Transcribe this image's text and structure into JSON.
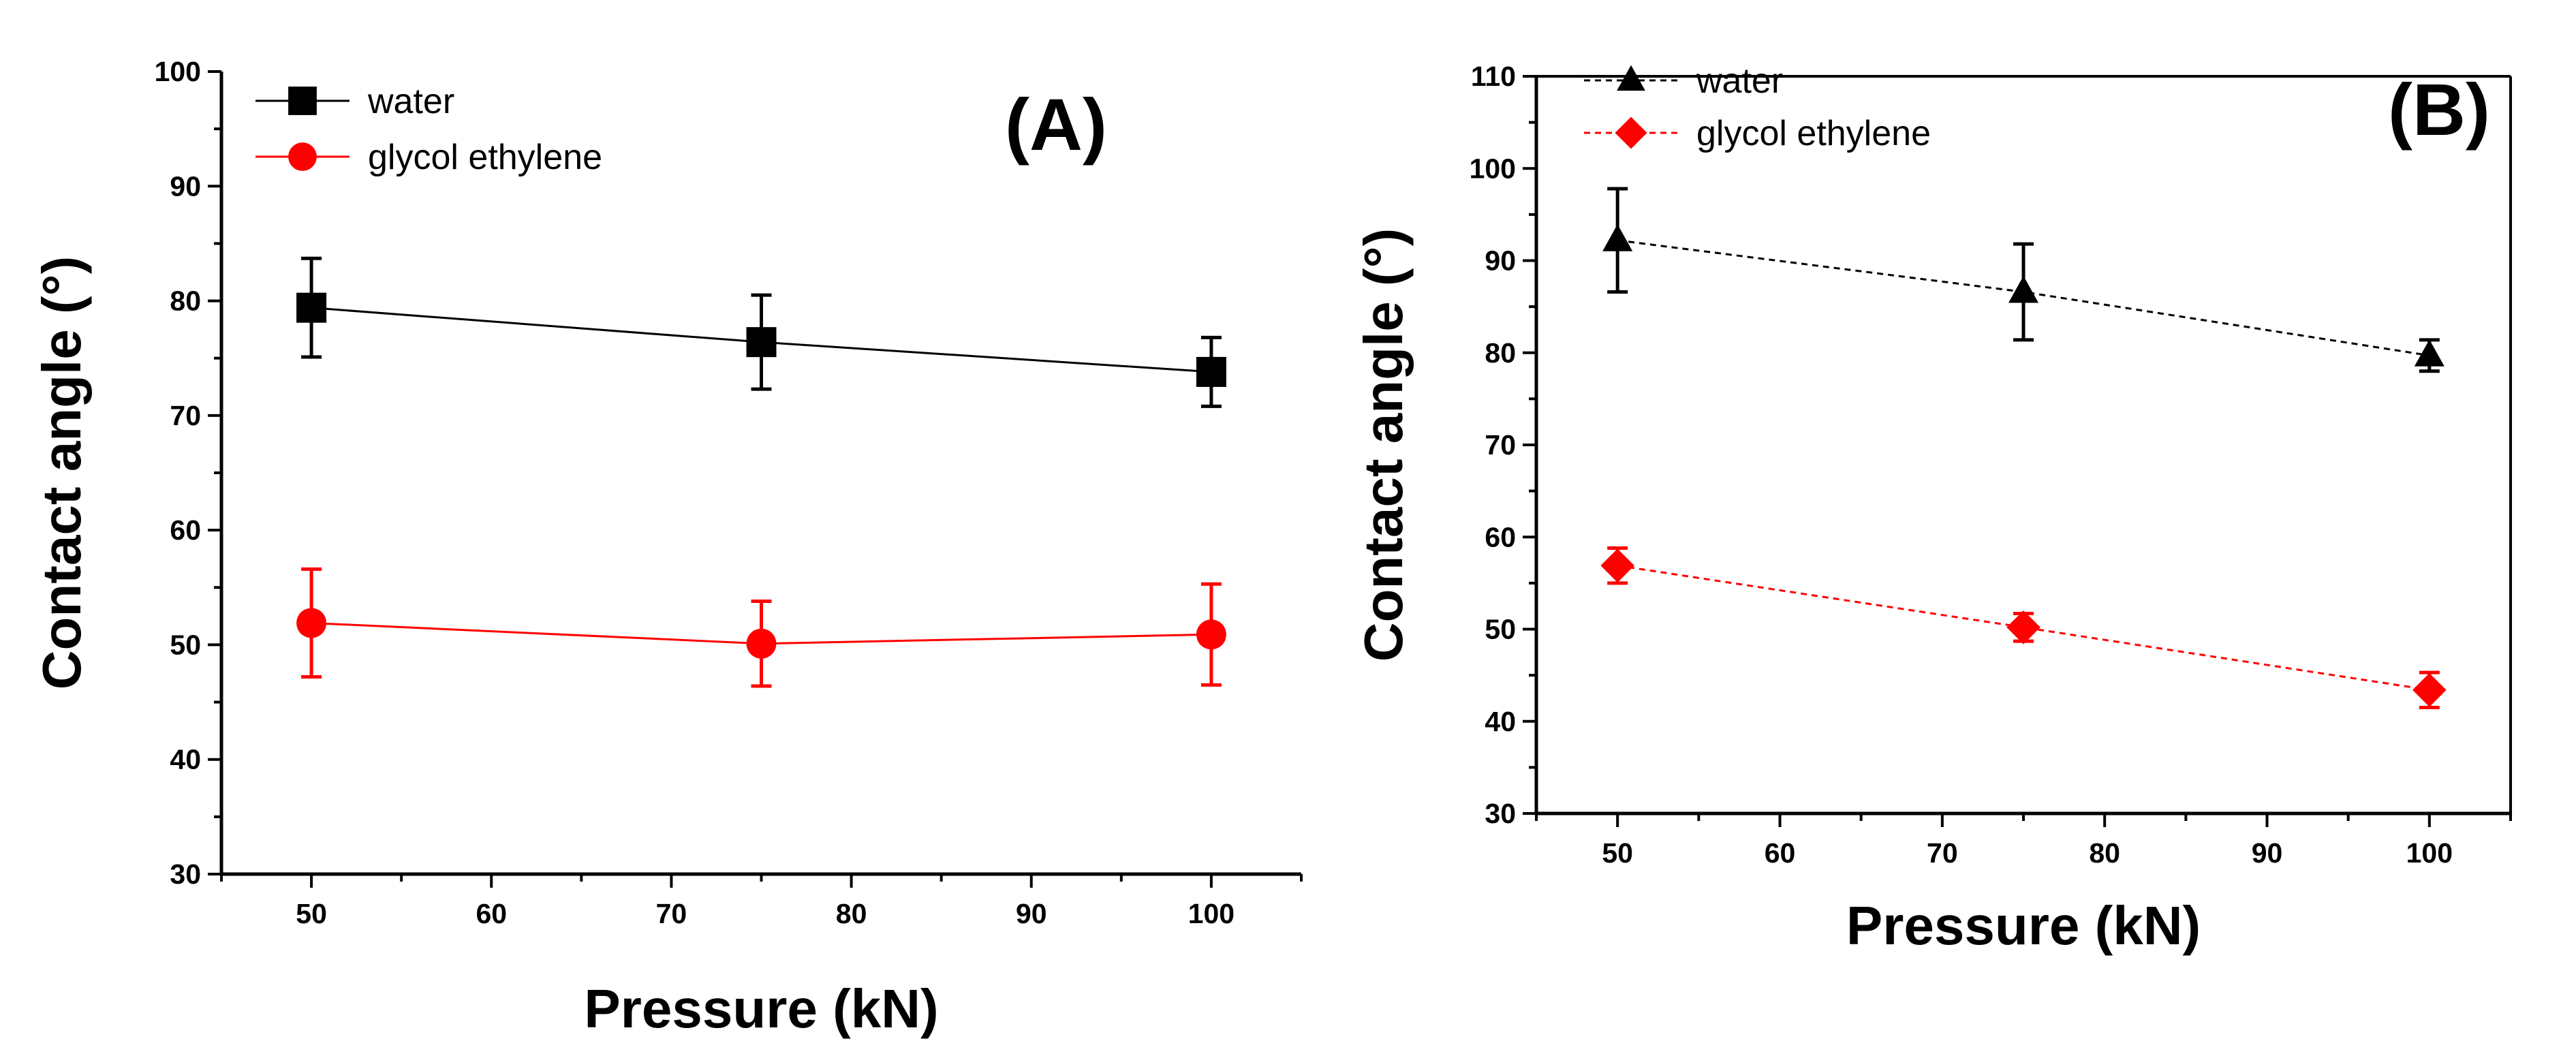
{
  "chart_data": [
    {
      "type": "line",
      "panel_label": "(A)",
      "xlabel": "Pressure (kN)",
      "ylabel": "Contact angle (°)",
      "xlim": [
        45,
        105
      ],
      "ylim": [
        30,
        100
      ],
      "xticks": [
        50,
        60,
        70,
        80,
        90,
        100
      ],
      "yticks": [
        30,
        40,
        50,
        60,
        70,
        80,
        90,
        100
      ],
      "legend_position": "top-left",
      "x": [
        50,
        75,
        100
      ],
      "series": [
        {
          "name": "water",
          "marker": "square",
          "line_style": "solid",
          "color": "#000000",
          "values": [
            79.4,
            76.4,
            73.8
          ],
          "errors": [
            4.3,
            4.1,
            3.0
          ]
        },
        {
          "name": "glycol ethylene",
          "marker": "circle",
          "line_style": "solid",
          "color": "#ff0000",
          "values": [
            51.9,
            50.1,
            50.9
          ],
          "errors": [
            4.7,
            3.7,
            4.4
          ]
        }
      ]
    },
    {
      "type": "line",
      "panel_label": "(B)",
      "xlabel": "Pressure (kN)",
      "ylabel": "Contact angle (°)",
      "xlim": [
        45,
        105
      ],
      "ylim": [
        30,
        110
      ],
      "xticks": [
        50,
        60,
        70,
        80,
        90,
        100
      ],
      "yticks": [
        30,
        40,
        50,
        60,
        70,
        80,
        90,
        100,
        110
      ],
      "legend_position": "top-left",
      "x": [
        50,
        75,
        100
      ],
      "series": [
        {
          "name": "water",
          "marker": "triangle",
          "line_style": "dotted",
          "color": "#000000",
          "values": [
            92.2,
            86.6,
            79.7
          ],
          "errors": [
            5.6,
            5.2,
            1.7
          ]
        },
        {
          "name": "glycol ethylene",
          "marker": "diamond",
          "line_style": "dotted",
          "color": "#ff0000",
          "values": [
            56.9,
            50.2,
            43.4
          ],
          "errors": [
            1.9,
            1.5,
            1.9
          ]
        }
      ]
    }
  ]
}
